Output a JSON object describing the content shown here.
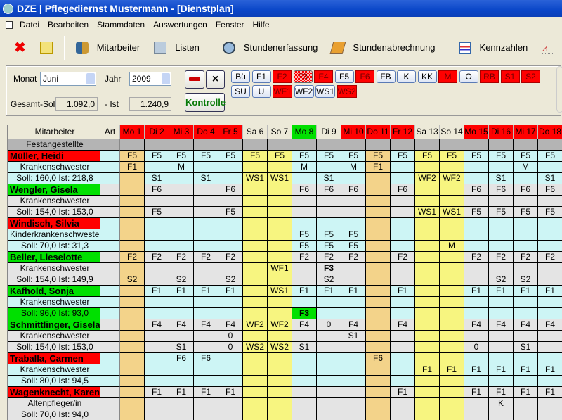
{
  "window": {
    "title": "DZE | Pflegediernst Mustermann - [Dienstplan]"
  },
  "menu": [
    "Datei",
    "Bearbeiten",
    "Stammdaten",
    "Auswertungen",
    "Fenster",
    "Hilfe"
  ],
  "toolbar": {
    "mitarbeiter": "Mitarbeiter",
    "listen": "Listen",
    "stundenerfassung": "Stundenerfassung",
    "stundenabrechnung": "Stundenabrechnung",
    "kennzahlen": "Kennzahlen",
    "more": "S"
  },
  "controls": {
    "monat_label": "Monat",
    "monat": "Juni",
    "jahr_label": "Jahr",
    "jahr": "2009",
    "soll_label": "Gesamt-Soll",
    "soll": "1.092,0",
    "ist_label": "- Ist",
    "ist": "1.240,9",
    "kontrolle": "Kontrolle",
    "close": "×"
  },
  "shift_buttons": [
    [
      {
        "l": "Bü",
        "s": "n"
      },
      {
        "l": "F1",
        "s": "n"
      },
      {
        "l": "F2",
        "s": "r"
      },
      {
        "l": "F3",
        "s": "p"
      },
      {
        "l": "F4",
        "s": "r"
      },
      {
        "l": "F5",
        "s": "n"
      },
      {
        "l": "F6",
        "s": "r"
      },
      {
        "l": "FB",
        "s": "n"
      },
      {
        "l": "K",
        "s": "n"
      },
      {
        "l": "KK",
        "s": "n"
      },
      {
        "l": "M",
        "s": "r"
      },
      {
        "l": "O",
        "s": "n"
      },
      {
        "l": "RB",
        "s": "r"
      },
      {
        "l": "S1",
        "s": "r"
      },
      {
        "l": "S2",
        "s": "r"
      }
    ],
    [
      {
        "l": "SU",
        "s": "n"
      },
      {
        "l": "U",
        "s": "n"
      },
      {
        "l": "WF1",
        "s": "r"
      },
      {
        "l": "WF2",
        "s": "n"
      },
      {
        "l": "WS1",
        "s": "n"
      },
      {
        "l": "WS2",
        "s": "r"
      }
    ]
  ],
  "colors": {
    "red": "#ff0000",
    "green": "#00e000",
    "cyan": "#cdf5f5",
    "gray": "#e4e4e4",
    "yellow": "#f7f580",
    "orange": "#f3d38a",
    "header_gray": "#b4b4b4"
  },
  "grid": {
    "col_mitarbeiter": "Mitarbeiter",
    "col_art": "Art",
    "group": "Festangestellte",
    "days": [
      {
        "l": "Mo 1",
        "c": "red",
        "b": "orange"
      },
      {
        "l": "Di 2",
        "c": "red"
      },
      {
        "l": "Mi 3",
        "c": "red"
      },
      {
        "l": "Do 4",
        "c": "red"
      },
      {
        "l": "Fr 5",
        "c": "red"
      },
      {
        "l": "Sa 6",
        "c": "plain",
        "b": "yellow"
      },
      {
        "l": "So 7",
        "c": "plain",
        "b": "yellow"
      },
      {
        "l": "Mo 8",
        "c": "green"
      },
      {
        "l": "Di 9",
        "c": "plain"
      },
      {
        "l": "Mi 10",
        "c": "red"
      },
      {
        "l": "Do 11",
        "c": "red",
        "b": "orange"
      },
      {
        "l": "Fr 12",
        "c": "red"
      },
      {
        "l": "Sa 13",
        "c": "plain",
        "b": "yellow"
      },
      {
        "l": "So 14",
        "c": "plain",
        "b": "yellow"
      },
      {
        "l": "Mo 15",
        "c": "red"
      },
      {
        "l": "Di 16",
        "c": "red"
      },
      {
        "l": "Mi 17",
        "c": "red"
      },
      {
        "l": "Do 18",
        "c": "red"
      }
    ],
    "employees": [
      {
        "name": "Müller, Heidi",
        "status": "red",
        "bg": "cyan",
        "job": "Krankenschwester",
        "hours": "Soll: 160,0 Ist: 218,8",
        "rows": [
          [
            "F5",
            "F5",
            "F5",
            "F5",
            "F5",
            "F5",
            "F5",
            "F5",
            "F5",
            "F5",
            "F5",
            "F5",
            "F5",
            "F5",
            "F5",
            "F5",
            "F5",
            "F5"
          ],
          [
            "F1",
            "",
            "M",
            "",
            "",
            "",
            "",
            "M",
            "",
            "M",
            "F1",
            "",
            "",
            "",
            "",
            "",
            "M",
            ""
          ],
          [
            "",
            "S1",
            "",
            "S1",
            "",
            "WS1",
            "WS1",
            "",
            "S1",
            "",
            "",
            "",
            "WF2",
            "WF2",
            "",
            "S1",
            "",
            "S1"
          ]
        ]
      },
      {
        "name": "Wengler, Gisela",
        "status": "green",
        "bg": "gray",
        "job": "Krankenschwester",
        "hours": "Soll: 154,0 Ist: 153,0",
        "rows": [
          [
            "",
            "F6",
            "",
            "",
            "F6",
            "",
            "",
            "F6",
            "F6",
            "F6",
            "",
            "F6",
            "",
            "",
            "F6",
            "F6",
            "F6",
            "F6"
          ],
          [
            "",
            "",
            "",
            "",
            "",
            "",
            "",
            "",
            "",
            "",
            "",
            "",
            "",
            "",
            "",
            "",
            "",
            ""
          ],
          [
            "",
            "F5",
            "",
            "",
            "F5",
            "",
            "",
            "",
            "",
            "",
            "",
            "",
            "WS1",
            "WS1",
            "F5",
            "F5",
            "F5",
            "F5"
          ]
        ]
      },
      {
        "name": "Windisch, Silvia",
        "status": "red",
        "bg": "cyan",
        "job": "Kinderkrankenschwester",
        "hours": "Soll:  70,0 Ist:  31,3",
        "rows": [
          [
            "",
            "",
            "",
            "",
            "",
            "",
            "",
            "",
            "",
            "",
            "",
            "",
            "",
            "",
            "",
            "",
            "",
            ""
          ],
          [
            "",
            "",
            "",
            "",
            "",
            "",
            "",
            "F5",
            "F5",
            "F5",
            "",
            "",
            "",
            "",
            "",
            "",
            "",
            ""
          ],
          [
            "",
            "",
            "",
            "",
            "",
            "",
            "",
            "F5",
            "F5",
            "F5",
            "",
            "",
            "",
            "M",
            "",
            "",
            "",
            ""
          ]
        ]
      },
      {
        "name": "Beller, Lieselotte",
        "status": "green",
        "bg": "gray",
        "job": "Krankenschwester",
        "hours": "Soll: 154,0 Ist: 149,9",
        "rows": [
          [
            "F2",
            "F2",
            "F2",
            "F2",
            "F2",
            "",
            "",
            "F2",
            "F2",
            "F2",
            "",
            "F2",
            "",
            "",
            "F2",
            "F2",
            "F2",
            "F2"
          ],
          [
            "",
            "",
            "",
            "",
            "",
            "",
            "WF1",
            "",
            "*F3",
            "",
            "",
            "",
            "",
            "",
            "",
            "",
            "",
            ""
          ],
          [
            "S2",
            "",
            "S2",
            "",
            "S2",
            "",
            "",
            "",
            "S2",
            "",
            "",
            "",
            "",
            "",
            "",
            "S2",
            "S2",
            ""
          ]
        ]
      },
      {
        "name": "Kafhold, Sonja",
        "status": "green",
        "bg": "cyan",
        "job": "Krankenschwester",
        "hours": "Soll:  96,0 Ist:  93,0",
        "hours_status": "green",
        "rows": [
          [
            "",
            "F1",
            "F1",
            "F1",
            "F1",
            "",
            "WS1",
            "F1",
            "F1",
            "F1",
            "",
            "F1",
            "",
            "",
            "F1",
            "F1",
            "F1",
            "F1"
          ],
          [
            "",
            "",
            "",
            "",
            "",
            "",
            "",
            "",
            "",
            "",
            "",
            "",
            "",
            "",
            "",
            "",
            "",
            ""
          ],
          [
            "",
            "",
            "",
            "",
            "",
            "",
            "",
            "#F3",
            "",
            "",
            "",
            "",
            "",
            "",
            "",
            "",
            "",
            ""
          ]
        ]
      },
      {
        "name": "Schmittlinger, Gisela",
        "status": "green",
        "bg": "gray",
        "job": "Krankenschwester",
        "hours": "Soll: 154,0 Ist: 153,0",
        "rows": [
          [
            "",
            "F4",
            "F4",
            "F4",
            "F4",
            "WF2",
            "WF2",
            "F4",
            "0",
            "F4",
            "",
            "F4",
            "",
            "",
            "F4",
            "F4",
            "F4",
            "F4"
          ],
          [
            "",
            "",
            "",
            "",
            "0",
            "",
            "",
            "",
            "",
            "S1",
            "",
            "",
            "",
            "",
            "",
            "",
            "",
            ""
          ],
          [
            "",
            "",
            "S1",
            "",
            "0",
            "WS2",
            "WS2",
            "S1",
            "",
            "",
            "",
            "",
            "",
            "",
            "0",
            "",
            "S1",
            ""
          ]
        ]
      },
      {
        "name": "Traballa, Carmen",
        "status": "red",
        "bg": "cyan",
        "job": "Krankenschwester",
        "hours": "Soll:  80,0 Ist:  94,5",
        "rows": [
          [
            "",
            "",
            "F6",
            "F6",
            "",
            "",
            "",
            "",
            "",
            "",
            "F6",
            "",
            "",
            "",
            "",
            "",
            "",
            ""
          ],
          [
            "",
            "",
            "",
            "",
            "",
            "",
            "",
            "",
            "",
            "",
            "",
            "",
            "F1",
            "F1",
            "F1",
            "F1",
            "F1",
            "F1"
          ],
          [
            "",
            "",
            "",
            "",
            "",
            "",
            "",
            "",
            "",
            "",
            "",
            "",
            "",
            "",
            "",
            "",
            "",
            ""
          ]
        ]
      },
      {
        "name": "Wagenknecht, Karen",
        "status": "red",
        "bg": "gray",
        "job": "Altenpfleger/in",
        "hours": "Soll:  70,0 Ist:  94,0",
        "rows": [
          [
            "",
            "F1",
            "F1",
            "F1",
            "F1",
            "",
            "",
            "",
            "",
            "",
            "",
            "F1",
            "",
            "",
            "F1",
            "F1",
            "F1",
            "F1"
          ],
          [
            "",
            "",
            "",
            "",
            "",
            "",
            "",
            "",
            "",
            "",
            "",
            "",
            "",
            "",
            "",
            "K",
            "",
            ""
          ],
          [
            "",
            "",
            "",
            "",
            "",
            "",
            "",
            "",
            "",
            "",
            "",
            "",
            "",
            "",
            "",
            "",
            "",
            ""
          ]
        ]
      }
    ]
  }
}
